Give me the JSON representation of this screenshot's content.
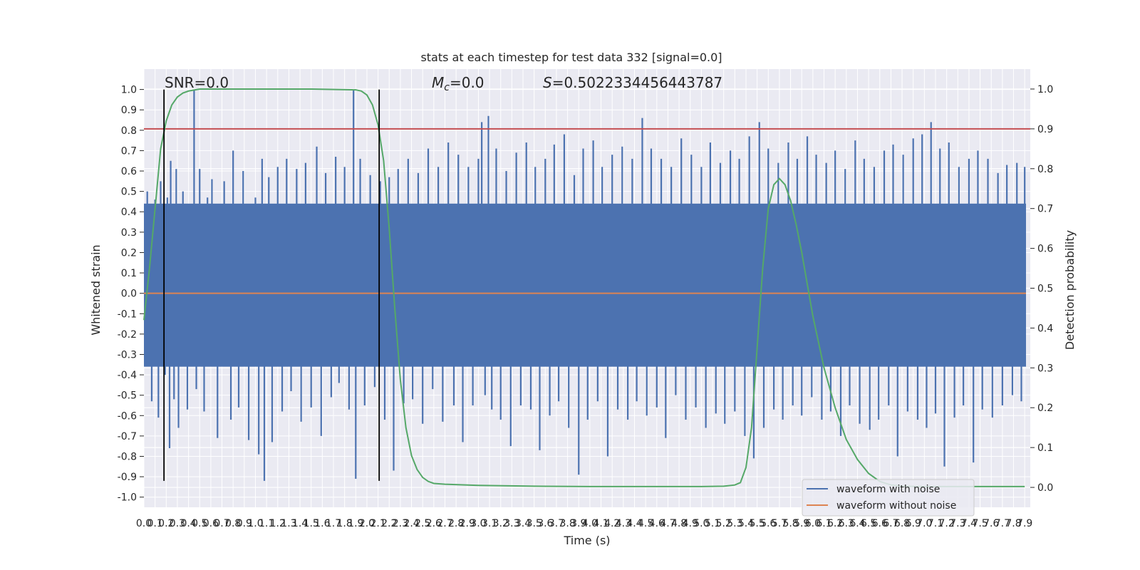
{
  "chart_data": {
    "type": "line",
    "title": "stats at each timestep for test data 332 [signal=0.0]",
    "xlabel": "Time (s)",
    "ylabel": "Whitened strain",
    "ylabel_right": "Detection probability",
    "xlim": [
      0.0,
      7.95
    ],
    "ylim": [
      -1.05,
      1.1
    ],
    "ylim_right": [
      -0.05,
      1.05
    ],
    "x_ticks": [
      0.0,
      0.1,
      0.2,
      0.3,
      0.4,
      0.5,
      0.6,
      0.7,
      0.8,
      0.9,
      1.0,
      1.1,
      1.2,
      1.3,
      1.4,
      1.5,
      1.6,
      1.7,
      1.8,
      1.9,
      2.0,
      2.1,
      2.2,
      2.3,
      2.4,
      2.5,
      2.6,
      2.7,
      2.8,
      2.9,
      3.0,
      3.1,
      3.2,
      3.3,
      3.4,
      3.5,
      3.6,
      3.7,
      3.8,
      3.9,
      4.0,
      4.1,
      4.2,
      4.3,
      4.4,
      4.5,
      4.6,
      4.7,
      4.8,
      4.9,
      5.0,
      5.1,
      5.2,
      5.3,
      5.4,
      5.5,
      5.6,
      5.7,
      5.8,
      5.9,
      6.0,
      6.1,
      6.2,
      6.3,
      6.4,
      6.5,
      6.6,
      6.7,
      6.8,
      6.9,
      7.0,
      7.1,
      7.2,
      7.3,
      7.4,
      7.5,
      7.6,
      7.7,
      7.8,
      7.9
    ],
    "y_ticks": [
      -1.0,
      -0.9,
      -0.8,
      -0.7,
      -0.6,
      -0.5,
      -0.4,
      -0.3,
      -0.2,
      -0.1,
      0.0,
      0.1,
      0.2,
      0.3,
      0.4,
      0.5,
      0.6,
      0.7,
      0.8,
      0.9,
      1.0
    ],
    "y_ticks_right": [
      0.0,
      0.1,
      0.2,
      0.3,
      0.4,
      0.5,
      0.6,
      0.7,
      0.8,
      0.9,
      1.0
    ],
    "grid": true,
    "legend_position": "lower-right",
    "annotations": {
      "snr": "SNR=0.0",
      "mc": "=0.0",
      "mc_symbol": "M",
      "mc_sub": "c",
      "s": "=0.5022334456443787",
      "s_symbol": "S"
    },
    "vertical_lines_x": [
      0.18,
      2.11
    ],
    "threshold_right": 0.9,
    "series": [
      {
        "name": "waveform with noise",
        "color": "#4c72b0",
        "fill_band": [
          -0.36,
          0.44
        ],
        "spikes": [
          [
            0.03,
            0.5
          ],
          [
            0.05,
            0.43
          ],
          [
            0.07,
            -0.53
          ],
          [
            0.1,
            0.46
          ],
          [
            0.13,
            -0.61
          ],
          [
            0.15,
            0.55
          ],
          [
            0.19,
            -0.4
          ],
          [
            0.21,
            0.47
          ],
          [
            0.23,
            -0.76
          ],
          [
            0.24,
            0.65
          ],
          [
            0.27,
            -0.52
          ],
          [
            0.29,
            0.61
          ],
          [
            0.31,
            -0.66
          ],
          [
            0.35,
            0.5
          ],
          [
            0.39,
            -0.57
          ],
          [
            0.45,
            1.0
          ],
          [
            0.47,
            -0.47
          ],
          [
            0.5,
            0.61
          ],
          [
            0.54,
            -0.58
          ],
          [
            0.57,
            0.47
          ],
          [
            0.61,
            0.56
          ],
          [
            0.66,
            -0.71
          ],
          [
            0.72,
            0.55
          ],
          [
            0.78,
            -0.62
          ],
          [
            0.8,
            0.7
          ],
          [
            0.85,
            -0.56
          ],
          [
            0.89,
            0.6
          ],
          [
            0.94,
            -0.72
          ],
          [
            1.0,
            0.47
          ],
          [
            1.03,
            -0.79
          ],
          [
            1.06,
            0.66
          ],
          [
            1.08,
            -0.92
          ],
          [
            1.12,
            0.57
          ],
          [
            1.15,
            -0.73
          ],
          [
            1.2,
            0.62
          ],
          [
            1.24,
            -0.58
          ],
          [
            1.28,
            0.66
          ],
          [
            1.32,
            -0.48
          ],
          [
            1.37,
            0.61
          ],
          [
            1.41,
            -0.63
          ],
          [
            1.45,
            0.64
          ],
          [
            1.5,
            -0.56
          ],
          [
            1.55,
            0.72
          ],
          [
            1.59,
            -0.7
          ],
          [
            1.63,
            0.59
          ],
          [
            1.68,
            -0.51
          ],
          [
            1.72,
            0.67
          ],
          [
            1.75,
            -0.44
          ],
          [
            1.8,
            0.62
          ],
          [
            1.84,
            -0.57
          ],
          [
            1.88,
            1.0
          ],
          [
            1.9,
            -0.91
          ],
          [
            1.94,
            0.66
          ],
          [
            1.98,
            -0.55
          ],
          [
            2.03,
            0.58
          ],
          [
            2.07,
            -0.46
          ],
          [
            2.12,
            0.55
          ],
          [
            2.16,
            -0.62
          ],
          [
            2.2,
            0.57
          ],
          [
            2.24,
            -0.87
          ],
          [
            2.28,
            0.61
          ],
          [
            2.33,
            -0.54
          ],
          [
            2.37,
            0.66
          ],
          [
            2.41,
            -0.52
          ],
          [
            2.46,
            0.59
          ],
          [
            2.5,
            -0.64
          ],
          [
            2.55,
            0.71
          ],
          [
            2.59,
            -0.47
          ],
          [
            2.64,
            0.62
          ],
          [
            2.68,
            -0.63
          ],
          [
            2.73,
            0.74
          ],
          [
            2.78,
            -0.55
          ],
          [
            2.82,
            0.68
          ],
          [
            2.86,
            -0.73
          ],
          [
            2.91,
            0.62
          ],
          [
            2.95,
            -0.55
          ],
          [
            3.0,
            0.66
          ],
          [
            3.03,
            0.84
          ],
          [
            3.06,
            -0.5
          ],
          [
            3.09,
            0.87
          ],
          [
            3.12,
            -0.57
          ],
          [
            3.16,
            0.71
          ],
          [
            3.2,
            -0.62
          ],
          [
            3.25,
            0.6
          ],
          [
            3.29,
            -0.75
          ],
          [
            3.34,
            0.69
          ],
          [
            3.38,
            -0.55
          ],
          [
            3.43,
            0.74
          ],
          [
            3.47,
            -0.57
          ],
          [
            3.51,
            0.62
          ],
          [
            3.55,
            -0.77
          ],
          [
            3.6,
            0.66
          ],
          [
            3.64,
            -0.6
          ],
          [
            3.68,
            0.73
          ],
          [
            3.72,
            -0.53
          ],
          [
            3.77,
            0.78
          ],
          [
            3.81,
            -0.66
          ],
          [
            3.86,
            0.58
          ],
          [
            3.9,
            -0.89
          ],
          [
            3.94,
            0.71
          ],
          [
            3.98,
            -0.62
          ],
          [
            4.03,
            0.75
          ],
          [
            4.07,
            -0.53
          ],
          [
            4.11,
            0.62
          ],
          [
            4.16,
            -0.8
          ],
          [
            4.2,
            0.68
          ],
          [
            4.25,
            -0.57
          ],
          [
            4.29,
            0.72
          ],
          [
            4.34,
            -0.62
          ],
          [
            4.38,
            0.66
          ],
          [
            4.42,
            -0.53
          ],
          [
            4.47,
            0.86
          ],
          [
            4.51,
            -0.6
          ],
          [
            4.55,
            0.71
          ],
          [
            4.6,
            -0.56
          ],
          [
            4.64,
            0.66
          ],
          [
            4.68,
            -0.71
          ],
          [
            4.73,
            0.62
          ],
          [
            4.77,
            -0.5
          ],
          [
            4.82,
            0.76
          ],
          [
            4.86,
            -0.62
          ],
          [
            4.91,
            0.68
          ],
          [
            4.95,
            -0.56
          ],
          [
            5.0,
            0.62
          ],
          [
            5.04,
            -0.66
          ],
          [
            5.08,
            0.74
          ],
          [
            5.13,
            -0.59
          ],
          [
            5.17,
            0.64
          ],
          [
            5.21,
            -0.64
          ],
          [
            5.26,
            0.7
          ],
          [
            5.3,
            -0.58
          ],
          [
            5.34,
            0.66
          ],
          [
            5.39,
            -0.7
          ],
          [
            5.43,
            0.77
          ],
          [
            5.47,
            -0.81
          ],
          [
            5.52,
            0.84
          ],
          [
            5.56,
            -0.66
          ],
          [
            5.6,
            0.71
          ],
          [
            5.65,
            -0.57
          ],
          [
            5.69,
            0.64
          ],
          [
            5.73,
            -0.62
          ],
          [
            5.78,
            0.74
          ],
          [
            5.82,
            -0.55
          ],
          [
            5.86,
            0.66
          ],
          [
            5.9,
            -0.6
          ],
          [
            5.95,
            0.77
          ],
          [
            5.99,
            -0.51
          ],
          [
            6.03,
            0.68
          ],
          [
            6.08,
            -0.62
          ],
          [
            6.12,
            0.64
          ],
          [
            6.16,
            -0.58
          ],
          [
            6.2,
            0.7
          ],
          [
            6.25,
            -0.7
          ],
          [
            6.29,
            0.61
          ],
          [
            6.33,
            -0.55
          ],
          [
            6.38,
            0.75
          ],
          [
            6.42,
            -0.64
          ],
          [
            6.46,
            0.66
          ],
          [
            6.51,
            -0.67
          ],
          [
            6.55,
            0.62
          ],
          [
            6.59,
            -0.62
          ],
          [
            6.64,
            0.7
          ],
          [
            6.68,
            -0.55
          ],
          [
            6.72,
            0.73
          ],
          [
            6.76,
            -0.8
          ],
          [
            6.81,
            0.68
          ],
          [
            6.85,
            -0.58
          ],
          [
            6.9,
            0.76
          ],
          [
            6.94,
            -0.62
          ],
          [
            6.98,
            0.78
          ],
          [
            7.02,
            -0.66
          ],
          [
            7.06,
            0.84
          ],
          [
            7.1,
            -0.59
          ],
          [
            7.14,
            0.71
          ],
          [
            7.18,
            -0.85
          ],
          [
            7.22,
            0.74
          ],
          [
            7.27,
            -0.61
          ],
          [
            7.31,
            0.62
          ],
          [
            7.35,
            -0.55
          ],
          [
            7.4,
            0.66
          ],
          [
            7.44,
            -0.83
          ],
          [
            7.48,
            0.7
          ],
          [
            7.52,
            -0.57
          ],
          [
            7.57,
            0.66
          ],
          [
            7.61,
            -0.61
          ],
          [
            7.66,
            0.59
          ],
          [
            7.7,
            -0.55
          ],
          [
            7.74,
            0.63
          ],
          [
            7.79,
            -0.5
          ],
          [
            7.83,
            0.64
          ],
          [
            7.87,
            -0.53
          ],
          [
            7.9,
            0.62
          ]
        ]
      },
      {
        "name": "waveform without noise",
        "color": "#dd8452",
        "values_x": [
          0.0,
          7.95
        ],
        "values_y": [
          0.0,
          0.0
        ]
      },
      {
        "name": "",
        "axis": "right",
        "color": "#55a868",
        "x": [
          0.0,
          0.05,
          0.1,
          0.15,
          0.2,
          0.25,
          0.3,
          0.35,
          0.4,
          0.5,
          0.7,
          1.0,
          1.5,
          1.9,
          1.95,
          2.0,
          2.05,
          2.1,
          2.15,
          2.2,
          2.25,
          2.3,
          2.35,
          2.4,
          2.45,
          2.5,
          2.55,
          2.6,
          2.7,
          3.0,
          3.5,
          4.0,
          4.5,
          5.0,
          5.2,
          5.3,
          5.35,
          5.4,
          5.45,
          5.5,
          5.55,
          5.6,
          5.65,
          5.7,
          5.75,
          5.8,
          5.85,
          5.9,
          5.95,
          6.0,
          6.1,
          6.2,
          6.3,
          6.4,
          6.5,
          6.6,
          6.7,
          6.8,
          7.0,
          7.5,
          7.9
        ],
        "y": [
          0.42,
          0.55,
          0.7,
          0.85,
          0.92,
          0.96,
          0.98,
          0.99,
          0.995,
          1.0,
          1.0,
          1.0,
          1.0,
          0.998,
          0.995,
          0.985,
          0.96,
          0.91,
          0.82,
          0.65,
          0.45,
          0.27,
          0.15,
          0.08,
          0.045,
          0.025,
          0.015,
          0.01,
          0.008,
          0.005,
          0.003,
          0.002,
          0.002,
          0.002,
          0.003,
          0.006,
          0.012,
          0.05,
          0.15,
          0.35,
          0.55,
          0.7,
          0.76,
          0.775,
          0.76,
          0.72,
          0.66,
          0.59,
          0.51,
          0.43,
          0.3,
          0.2,
          0.12,
          0.07,
          0.035,
          0.015,
          0.006,
          0.003,
          0.002,
          0.002,
          0.002
        ]
      }
    ]
  }
}
